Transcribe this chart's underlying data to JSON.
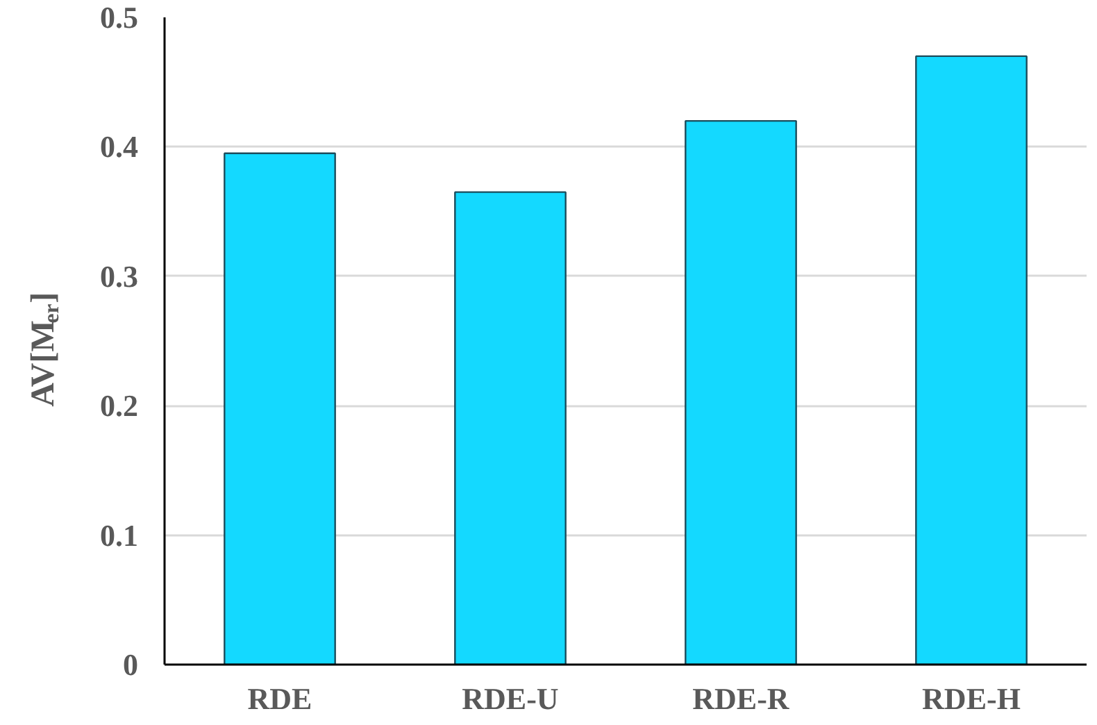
{
  "chart_data": {
    "type": "bar",
    "ylabel": "AV[M$_{er}$]",
    "categories": [
      "RDE",
      "RDE-U",
      "RDE-R",
      "RDE-H"
    ],
    "values": [
      0.395,
      0.365,
      0.42,
      0.47
    ],
    "color": "#14d9ff",
    "ylim": [
      0,
      0.5
    ],
    "yticks": [
      0,
      0.1,
      0.2,
      0.3,
      0.4,
      0.5
    ],
    "grid": "y"
  }
}
